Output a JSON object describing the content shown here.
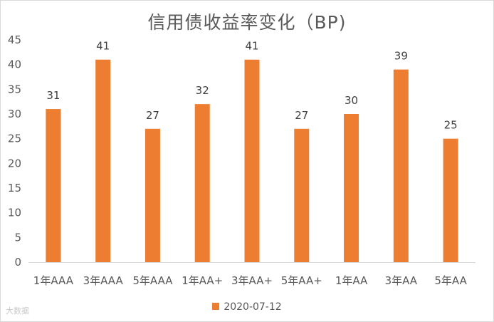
{
  "chart_data": {
    "type": "bar",
    "title": "信用债收益率变化（BP)",
    "categories": [
      "1年AAA",
      "3年AAA",
      "5年AAA",
      "1年AA+",
      "3年AA+",
      "5年AA+",
      "1年AA",
      "3年AA",
      "5年AA"
    ],
    "series": [
      {
        "name": "2020-07-12",
        "values": [
          31,
          41,
          27,
          32,
          41,
          27,
          30,
          39,
          25
        ]
      }
    ],
    "yticks": [
      "0",
      "5",
      "10",
      "15",
      "20",
      "25",
      "30",
      "35",
      "40",
      "45"
    ],
    "ylim": [
      0,
      45
    ],
    "grid": false,
    "legend_position": "bottom",
    "colors": {
      "bar": "#ED7D31",
      "axis": "#d9d9d9",
      "text": "#595959"
    },
    "watermark": "大数据"
  }
}
